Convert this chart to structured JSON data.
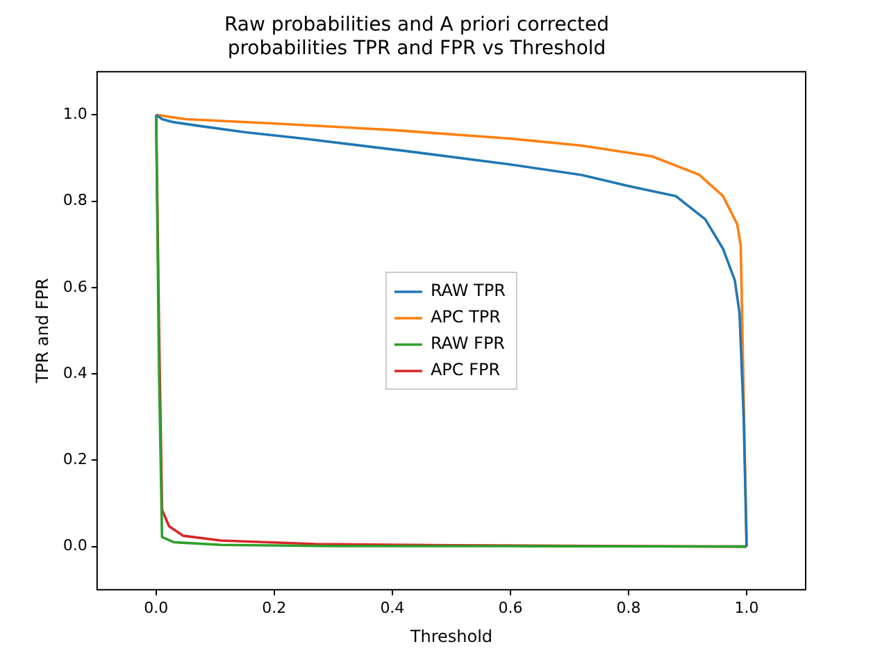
{
  "chart_data": {
    "type": "line",
    "title": "Raw probabilities and A priori corrected\nprobabilities TPR and FPR vs Threshold",
    "xlabel": "Threshold",
    "ylabel": "TPR and FPR",
    "xlim": [
      -0.1,
      1.1
    ],
    "ylim": [
      -0.1,
      1.1
    ],
    "xticks": [
      {
        "value": 0,
        "label": "0.0"
      },
      {
        "value": 0.2,
        "label": "0.2"
      },
      {
        "value": 0.4,
        "label": "0.4"
      },
      {
        "value": 0.6,
        "label": "0.6"
      },
      {
        "value": 0.8,
        "label": "0.8"
      },
      {
        "value": 1,
        "label": "1.0"
      }
    ],
    "yticks": [
      {
        "value": 0,
        "label": "0.0"
      },
      {
        "value": 0.2,
        "label": "0.2"
      },
      {
        "value": 0.4,
        "label": "0.4"
      },
      {
        "value": 0.6,
        "label": "0.6"
      },
      {
        "value": 0.8,
        "label": "0.8"
      },
      {
        "value": 1,
        "label": "1.0"
      }
    ],
    "grid": false,
    "legend": "center",
    "marker": "none",
    "line_style": "solid",
    "series": [
      {
        "name": "RAW TPR",
        "color": "#1f77b4",
        "x": [
          0,
          0.01,
          0.03,
          0.07,
          0.15,
          0.25,
          0.43,
          0.6,
          0.72,
          0.8,
          0.88,
          0.93,
          0.96,
          0.98,
          0.988,
          0.995,
          1
        ],
        "values": [
          1,
          0.99,
          0.983,
          0.975,
          0.96,
          0.945,
          0.915,
          0.885,
          0.861,
          0.835,
          0.812,
          0.758,
          0.69,
          0.617,
          0.541,
          0.3,
          0
        ]
      },
      {
        "name": "APC TPR",
        "color": "#ff7f0e",
        "x": [
          0,
          0.05,
          0.2,
          0.4,
          0.6,
          0.72,
          0.84,
          0.92,
          0.96,
          0.984,
          0.99,
          0.995,
          1
        ],
        "values": [
          1,
          0.99,
          0.98,
          0.965,
          0.945,
          0.929,
          0.904,
          0.861,
          0.812,
          0.747,
          0.698,
          0.35,
          0
        ]
      },
      {
        "name": "RAW FPR",
        "color": "#2ca02c",
        "x": [
          0,
          0.005,
          0.01,
          0.03,
          0.11,
          0.3,
          0.6,
          1
        ],
        "values": [
          1,
          0.4,
          0.022,
          0.01,
          0.004,
          0.001,
          0.001,
          0
        ]
      },
      {
        "name": "APC FPR",
        "color": "#d62728",
        "x": [
          0,
          0.005,
          0.01,
          0.022,
          0.046,
          0.11,
          0.27,
          0.5,
          0.8,
          1
        ],
        "values": [
          1,
          0.5,
          0.085,
          0.047,
          0.025,
          0.014,
          0.006,
          0.003,
          0.001,
          0
        ]
      }
    ]
  }
}
